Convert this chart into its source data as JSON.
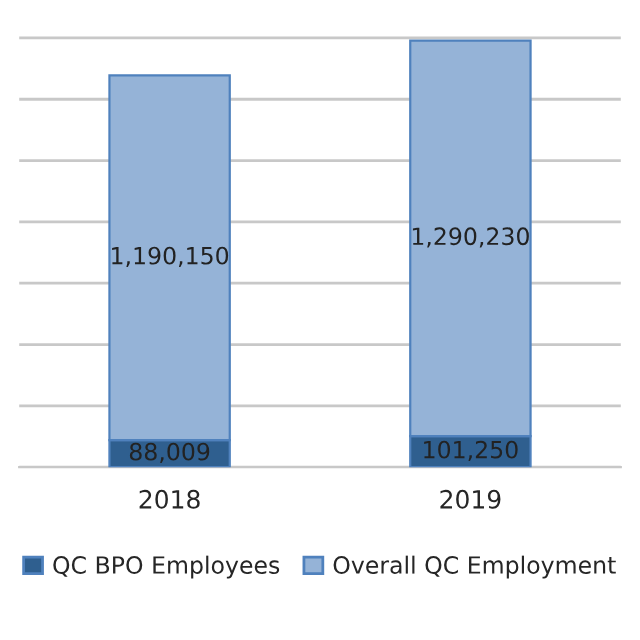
{
  "chart_data": {
    "type": "bar",
    "stacked": true,
    "categories": [
      "2018",
      "2019"
    ],
    "series": [
      {
        "name": "QC BPO Employees",
        "color": "#2f5f8f",
        "values": [
          88009,
          101250
        ],
        "value_labels": [
          "88,009",
          "101,250"
        ]
      },
      {
        "name": "Overall QC Employment",
        "color": "#95b3d7",
        "values": [
          1190150,
          1290230
        ],
        "value_labels": [
          "1,190,150",
          "1,290,230"
        ]
      }
    ],
    "tick_labels": "x",
    "grid": "y",
    "legend": "bottom"
  }
}
